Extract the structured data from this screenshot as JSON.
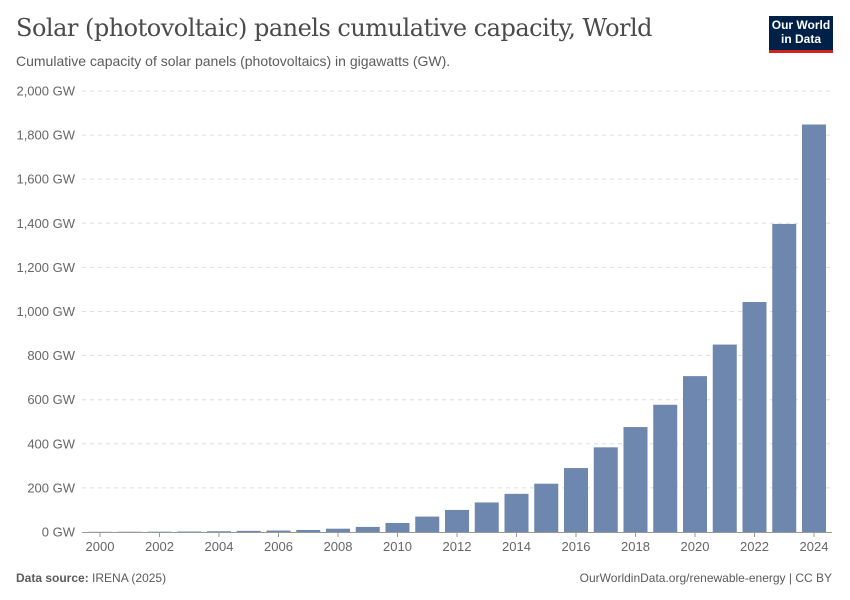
{
  "title": "Solar (photovoltaic) panels cumulative capacity, World",
  "subtitle": "Cumulative capacity of solar panels (photovoltaics) in gigawatts (GW).",
  "logo": "Our World in Data",
  "footer": {
    "source_label": "Data source:",
    "source": "IRENA (2025)",
    "right": "OurWorldinData.org/renewable-energy | CC BY"
  },
  "colors": {
    "bar": "#6d87af",
    "grid": "#dddddd"
  },
  "chart_data": {
    "type": "bar",
    "title": "Solar (photovoltaic) panels cumulative capacity, World",
    "xlabel": "",
    "ylabel": "",
    "unit": "GW",
    "ylim": [
      0,
      2000
    ],
    "grid": true,
    "yticks": [
      0,
      200,
      400,
      600,
      800,
      1000,
      1200,
      1400,
      1600,
      1800,
      2000
    ],
    "ytick_labels": [
      "0 GW",
      "200 GW",
      "400 GW",
      "600 GW",
      "800 GW",
      "1,000 GW",
      "1,200 GW",
      "1,400 GW",
      "1,600 GW",
      "1,800 GW",
      "2,000 GW"
    ],
    "xtick_labels": [
      "2000",
      "2002",
      "2004",
      "2006",
      "2008",
      "2010",
      "2012",
      "2014",
      "2016",
      "2018",
      "2020",
      "2022",
      "2024"
    ],
    "categories": [
      2000,
      2001,
      2002,
      2003,
      2004,
      2005,
      2006,
      2007,
      2008,
      2009,
      2010,
      2011,
      2012,
      2013,
      2014,
      2015,
      2016,
      2017,
      2018,
      2019,
      2020,
      2021,
      2022,
      2023,
      2024
    ],
    "values": [
      0.8,
      1.1,
      1.5,
      2.1,
      3.4,
      5.1,
      6.6,
      9.2,
      15,
      23,
      41,
      70,
      100,
      134,
      173,
      219,
      290,
      384,
      476,
      577,
      707,
      850,
      1043,
      1397,
      1848
    ]
  }
}
